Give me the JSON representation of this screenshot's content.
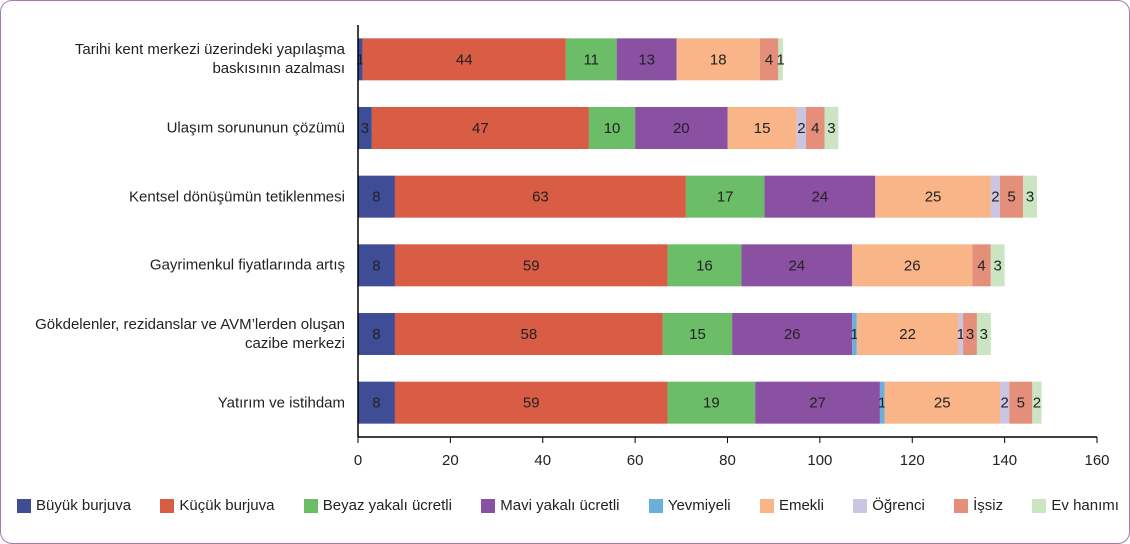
{
  "chart_data": {
    "type": "stacked-bar-horizontal",
    "categories": [
      "Tarihi kent merkezi üzerindeki yapılaşma baskısının azalması",
      "Ulaşım sorununun çözümü",
      "Kentsel dönüşümün tetiklenmesi",
      "Gayrimenkul fiyatlarında artış",
      "Gökdelenler, rezidanslar ve AVM’lerden oluşan cazibe merkezi",
      "Yatırım ve istihdam"
    ],
    "series": [
      {
        "name": "Büyük burjuva",
        "color": "#3f4d97",
        "values": [
          1,
          3,
          8,
          8,
          8,
          8
        ]
      },
      {
        "name": "Küçük burjuva",
        "color": "#d95c45",
        "values": [
          44,
          47,
          63,
          59,
          58,
          59
        ]
      },
      {
        "name": "Beyaz yakalı ücretli",
        "color": "#6bbd67",
        "values": [
          11,
          10,
          17,
          16,
          15,
          19
        ]
      },
      {
        "name": "Mavi yakalı ücretli",
        "color": "#8a51a2",
        "values": [
          13,
          20,
          24,
          24,
          26,
          27
        ]
      },
      {
        "name": "Yevmiyeli",
        "color": "#6aafdc",
        "values": [
          null,
          null,
          null,
          null,
          1,
          1
        ]
      },
      {
        "name": "Emekli",
        "color": "#f9b487",
        "values": [
          18,
          15,
          25,
          26,
          22,
          25
        ]
      },
      {
        "name": "Öğrenci",
        "color": "#c9c5e2",
        "values": [
          null,
          2,
          2,
          null,
          1,
          2
        ]
      },
      {
        "name": "İşsiz",
        "color": "#e48f79",
        "values": [
          4,
          4,
          5,
          4,
          3,
          5
        ]
      },
      {
        "name": "Ev hanımı",
        "color": "#cbe4c2",
        "values": [
          1,
          3,
          3,
          3,
          3,
          2
        ]
      }
    ],
    "xlim": [
      0,
      160
    ],
    "xticks": [
      0,
      20,
      40,
      60,
      80,
      100,
      120,
      140,
      160
    ],
    "legend": "bottom"
  }
}
